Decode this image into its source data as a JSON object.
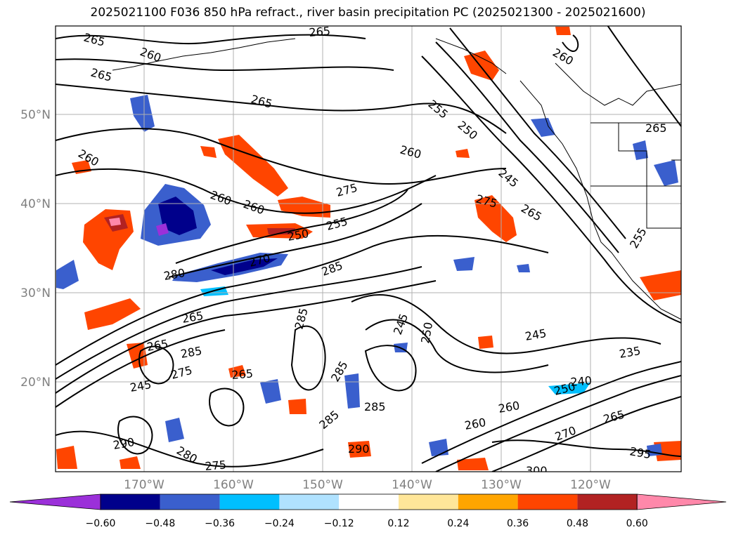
{
  "title": "2025021100 F036 850 hPa refract., river basin precipitation PC (2025021300 - 2025021600)",
  "map": {
    "lat_labels": [
      "50°N",
      "40°N",
      "30°N",
      "20°N"
    ],
    "lon_labels": [
      "170°W",
      "160°W",
      "150°W",
      "140°W",
      "130°W",
      "120°W"
    ],
    "axis_label_color": "#808080",
    "gridline_color": "#b0b0b0",
    "contour_color": "#000000",
    "contour_labels": [
      "265",
      "260",
      "265",
      "265",
      "260",
      "260",
      "255",
      "250",
      "260",
      "245",
      "265",
      "260",
      "260",
      "275",
      "255",
      "250",
      "275",
      "280",
      "285",
      "270",
      "265",
      "250",
      "245",
      "285",
      "265",
      "285",
      "275",
      "285",
      "245",
      "265",
      "285",
      "250",
      "245",
      "235",
      "240",
      "285",
      "265",
      "260",
      "270",
      "280",
      "295",
      "290",
      "275",
      "300",
      "290",
      "260",
      "255",
      "265",
      "265"
    ]
  },
  "colorbar": {
    "colors": [
      "#9b30d9",
      "#00008b",
      "#3a5fcd",
      "#00bfff",
      "#b0e2ff",
      "#ffffff",
      "#ffe699",
      "#ffa500",
      "#ff4500",
      "#b22222",
      "#ff88aa"
    ],
    "ticks": [
      "−0.60",
      "−0.48",
      "−0.36",
      "−0.24",
      "−0.12",
      "0.12",
      "0.24",
      "0.36",
      "0.48",
      "0.60"
    ]
  }
}
